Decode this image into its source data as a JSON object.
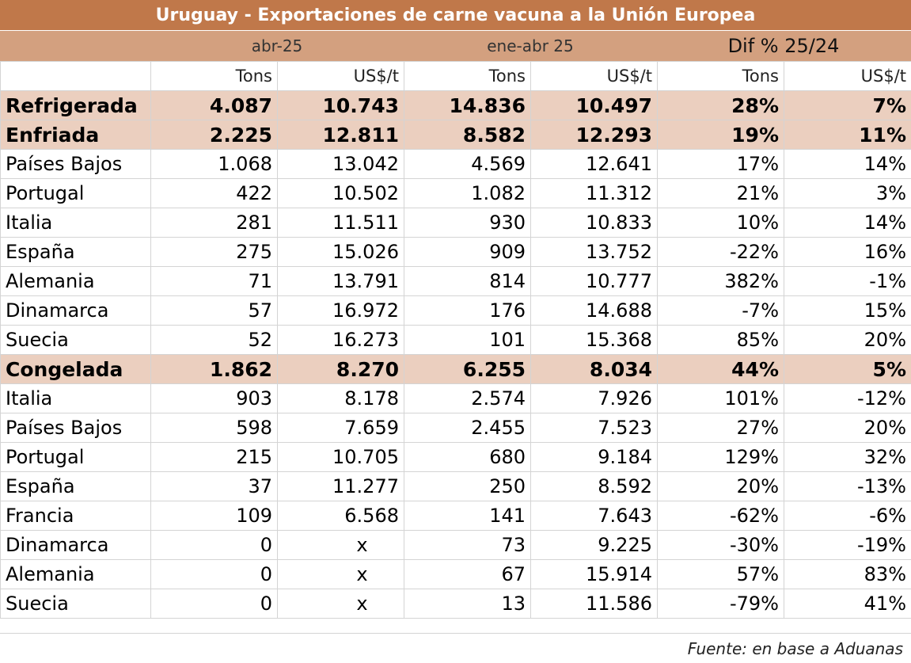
{
  "title": "Uruguay - Exportaciones de carne vacuna a la Unión Europea",
  "periods": [
    "abr-25",
    "ene-abr 25",
    "Dif % 25/24"
  ],
  "units": [
    "Tons",
    "US$/t",
    "Tons",
    "US$/t",
    "Tons",
    "US$/t"
  ],
  "colors": {
    "title_bg": "#c0784a",
    "period_bg": "#d3a07f",
    "section_bg": "#ebcfbf"
  },
  "chart_data": {
    "type": "table",
    "title": "Uruguay - Exportaciones de carne vacuna a la Unión Europea",
    "columns": [
      "abr-25 Tons",
      "abr-25 US$/t",
      "ene-abr 25 Tons",
      "ene-abr 25 US$/t",
      "Dif % 25/24 Tons",
      "Dif % 25/24 US$/t"
    ],
    "rows": [
      {
        "label": "Refrigerada",
        "section": true,
        "values": [
          "4.087",
          "10.743",
          "14.836",
          "10.497",
          "28%",
          "7%"
        ]
      },
      {
        "label": "Enfriada",
        "section": true,
        "values": [
          "2.225",
          "12.811",
          "8.582",
          "12.293",
          "19%",
          "11%"
        ]
      },
      {
        "label": "Países Bajos",
        "section": false,
        "values": [
          "1.068",
          "13.042",
          "4.569",
          "12.641",
          "17%",
          "14%"
        ]
      },
      {
        "label": "Portugal",
        "section": false,
        "values": [
          "422",
          "10.502",
          "1.082",
          "11.312",
          "21%",
          "3%"
        ]
      },
      {
        "label": "Italia",
        "section": false,
        "values": [
          "281",
          "11.511",
          "930",
          "10.833",
          "10%",
          "14%"
        ]
      },
      {
        "label": "España",
        "section": false,
        "values": [
          "275",
          "15.026",
          "909",
          "13.752",
          "-22%",
          "16%"
        ]
      },
      {
        "label": "Alemania",
        "section": false,
        "values": [
          "71",
          "13.791",
          "814",
          "10.777",
          "382%",
          "-1%"
        ]
      },
      {
        "label": "Dinamarca",
        "section": false,
        "values": [
          "57",
          "16.972",
          "176",
          "14.688",
          "-7%",
          "15%"
        ]
      },
      {
        "label": "Suecia",
        "section": false,
        "values": [
          "52",
          "16.273",
          "101",
          "15.368",
          "85%",
          "20%"
        ]
      },
      {
        "label": "Congelada",
        "section": true,
        "values": [
          "1.862",
          "8.270",
          "6.255",
          "8.034",
          "44%",
          "5%"
        ]
      },
      {
        "label": "Italia",
        "section": false,
        "values": [
          "903",
          "8.178",
          "2.574",
          "7.926",
          "101%",
          "-12%"
        ]
      },
      {
        "label": "Países Bajos",
        "section": false,
        "values": [
          "598",
          "7.659",
          "2.455",
          "7.523",
          "27%",
          "20%"
        ]
      },
      {
        "label": "Portugal",
        "section": false,
        "values": [
          "215",
          "10.705",
          "680",
          "9.184",
          "129%",
          "32%"
        ]
      },
      {
        "label": "España",
        "section": false,
        "values": [
          "37",
          "11.277",
          "250",
          "8.592",
          "20%",
          "-13%"
        ]
      },
      {
        "label": "Francia",
        "section": false,
        "values": [
          "109",
          "6.568",
          "141",
          "7.643",
          "-62%",
          "-6%"
        ]
      },
      {
        "label": "Dinamarca",
        "section": false,
        "values": [
          "0",
          "x",
          "73",
          "9.225",
          "-30%",
          "-19%"
        ]
      },
      {
        "label": "Alemania",
        "section": false,
        "values": [
          "0",
          "x",
          "67",
          "15.914",
          "57%",
          "83%"
        ]
      },
      {
        "label": "Suecia",
        "section": false,
        "values": [
          "0",
          "x",
          "13",
          "11.586",
          "-79%",
          "41%"
        ]
      }
    ]
  },
  "footer": "Fuente: en base a Aduanas"
}
